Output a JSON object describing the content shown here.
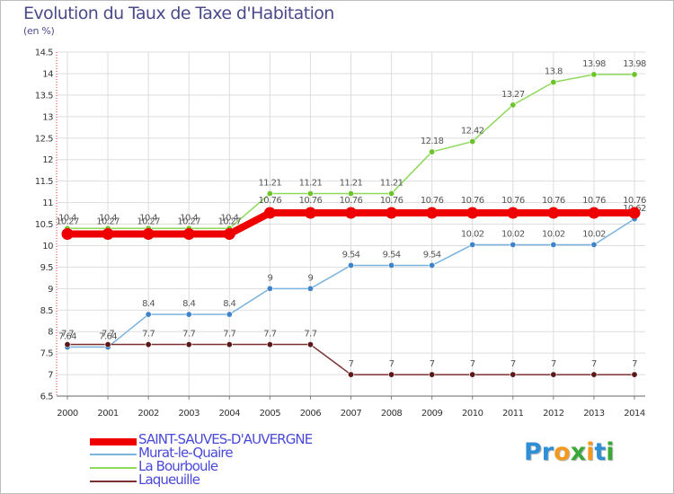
{
  "chart_data": {
    "type": "line",
    "title": "Evolution du Taux de Taxe d'Habitation",
    "subtitle": "(en %)",
    "xlabel": "",
    "ylabel": "(en %)",
    "categories": [
      "2000",
      "2001",
      "2002",
      "2003",
      "2004",
      "2005",
      "2006",
      "2007",
      "2008",
      "2009",
      "2010",
      "2011",
      "2012",
      "2013",
      "2014"
    ],
    "ylim": [
      6.5,
      14.5
    ],
    "yticks": [
      "6.5",
      "7",
      "7.5",
      "8",
      "8.5",
      "9",
      "9.5",
      "10",
      "10.5",
      "11",
      "11.5",
      "12",
      "12.5",
      "13",
      "13.5",
      "14",
      "14.5"
    ],
    "grid": true,
    "legend_position": "bottom-left",
    "series": [
      {
        "name": "La Bourboule",
        "color": "#8ed85a",
        "marker_color": "#6cc42a",
        "width": 1.5,
        "values": [
          10.4,
          10.4,
          10.4,
          10.4,
          10.4,
          11.21,
          11.21,
          11.21,
          11.21,
          12.18,
          12.42,
          13.27,
          13.8,
          13.98,
          13.98
        ],
        "labels": [
          "10.4",
          "10.4",
          "10.4",
          "10.4",
          "10.4",
          "11.21",
          "11.21",
          "11.21",
          "11.21",
          "12.18",
          "12.42",
          "13.27",
          "13.8",
          "13.98",
          "13.98"
        ]
      },
      {
        "name": "Murat-le-Quaire",
        "color": "#7ab3de",
        "marker_color": "#3f83c8",
        "width": 1.5,
        "values": [
          7.64,
          7.64,
          8.4,
          8.4,
          8.4,
          9,
          9,
          9.54,
          9.54,
          9.54,
          10.02,
          10.02,
          10.02,
          10.02,
          10.62
        ],
        "labels": [
          "7.64",
          "7.64",
          "8.4",
          "8.4",
          "8.4",
          "9",
          "9",
          "9.54",
          "9.54",
          "9.54",
          "10.02",
          "10.02",
          "10.02",
          "10.02",
          "10.62"
        ]
      },
      {
        "name": "Laqueuille",
        "color": "#7a3030",
        "marker_color": "#5a1818",
        "width": 1.5,
        "values": [
          7.7,
          7.7,
          7.7,
          7.7,
          7.7,
          7.7,
          7.7,
          7,
          7,
          7,
          7,
          7,
          7,
          7,
          7
        ],
        "labels": [
          "7.7",
          "7.7",
          "7.7",
          "7.7",
          "7.7",
          "7.7",
          "7.7",
          "7",
          "7",
          "7",
          "7",
          "7",
          "7",
          "7",
          "7"
        ]
      },
      {
        "name": "SAINT-SAUVES-D'AUVERGNE",
        "color": "#ee0000",
        "marker_color": "#ee0000",
        "width": 8,
        "values": [
          10.27,
          10.27,
          10.27,
          10.27,
          10.27,
          10.76,
          10.76,
          10.76,
          10.76,
          10.76,
          10.76,
          10.76,
          10.76,
          10.76,
          10.76
        ],
        "labels": [
          "10.27",
          "10.27",
          "10.27",
          "10.27",
          "10.27",
          "10.76",
          "10.76",
          "10.76",
          "10.76",
          "10.76",
          "10.76",
          "10.76",
          "10.76",
          "10.76",
          "10.76"
        ]
      }
    ]
  },
  "legend": {
    "items": [
      {
        "label": "SAINT-SAUVES-D'AUVERGNE",
        "color": "#ee0000"
      },
      {
        "label": "Murat-le-Quaire",
        "color": "#7ab3de"
      },
      {
        "label": "La Bourboule",
        "color": "#8ed85a"
      },
      {
        "label": "Laqueuille",
        "color": "#7a3030"
      }
    ]
  },
  "logo": {
    "letters": [
      "P",
      "r",
      "o",
      "x",
      "i",
      "t",
      "i"
    ],
    "colors": [
      "#2f8fd6",
      "#2f8fd6",
      "#f29a1f",
      "#3aa93a",
      "#f29a1f",
      "#2f8fd6",
      "#3aa93a"
    ]
  }
}
